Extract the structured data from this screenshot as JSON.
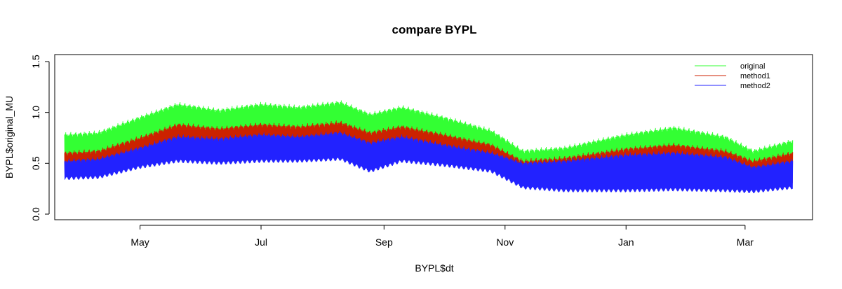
{
  "chart_data": {
    "type": "line",
    "title": "compare BYPL",
    "xlabel": "BYPL$dt",
    "ylabel": "BYPL$original_MU",
    "ylim": [
      0.0,
      1.5
    ],
    "yticks": [
      "0.0",
      "0.5",
      "1.0",
      "1.5"
    ],
    "xlim": [
      "2019-03-19",
      "2020-04-04"
    ],
    "xticks": [
      {
        "label": "May",
        "date": "2019-05-01"
      },
      {
        "label": "Jul",
        "date": "2019-07-01"
      },
      {
        "label": "Sep",
        "date": "2019-09-01"
      },
      {
        "label": "Nov",
        "date": "2019-11-01"
      },
      {
        "label": "Jan",
        "date": "2020-01-01"
      },
      {
        "label": "Mar",
        "date": "2020-03-01"
      }
    ],
    "grid": false,
    "legend_position": "top-right",
    "series": [
      {
        "name": "original",
        "color": "#33ff33",
        "x": [
          "2019-03-24",
          "2019-04-10",
          "2019-05-01",
          "2019-05-20",
          "2019-06-10",
          "2019-07-01",
          "2019-07-20",
          "2019-08-10",
          "2019-08-25",
          "2019-09-10",
          "2019-10-01",
          "2019-10-25",
          "2019-11-10",
          "2019-12-01",
          "2020-01-01",
          "2020-01-25",
          "2020-02-20",
          "2020-03-05",
          "2020-03-25"
        ],
        "y_high": [
          0.78,
          0.8,
          0.95,
          1.08,
          1.02,
          1.08,
          1.05,
          1.1,
          0.98,
          1.05,
          0.95,
          0.82,
          0.62,
          0.65,
          0.78,
          0.85,
          0.76,
          0.62,
          0.72
        ],
        "y_low": [
          0.45,
          0.48,
          0.6,
          0.68,
          0.66,
          0.68,
          0.68,
          0.7,
          0.58,
          0.68,
          0.62,
          0.55,
          0.42,
          0.4,
          0.45,
          0.48,
          0.45,
          0.42,
          0.46
        ]
      },
      {
        "name": "method1",
        "color": "#cc2200",
        "x": [
          "2019-03-24",
          "2019-04-10",
          "2019-05-01",
          "2019-05-20",
          "2019-06-10",
          "2019-07-01",
          "2019-07-20",
          "2019-08-10",
          "2019-08-25",
          "2019-09-10",
          "2019-10-01",
          "2019-10-25",
          "2019-11-10",
          "2019-12-01",
          "2020-01-01",
          "2020-01-25",
          "2020-02-20",
          "2020-03-05",
          "2020-03-25"
        ],
        "y_high": [
          0.6,
          0.62,
          0.75,
          0.88,
          0.84,
          0.88,
          0.86,
          0.9,
          0.8,
          0.86,
          0.78,
          0.68,
          0.52,
          0.55,
          0.64,
          0.68,
          0.62,
          0.52,
          0.6
        ],
        "y_low": [
          0.4,
          0.42,
          0.52,
          0.6,
          0.58,
          0.6,
          0.6,
          0.62,
          0.5,
          0.6,
          0.55,
          0.48,
          0.3,
          0.28,
          0.3,
          0.32,
          0.3,
          0.28,
          0.32
        ]
      },
      {
        "name": "method2",
        "color": "#2222ff",
        "x": [
          "2019-03-24",
          "2019-04-10",
          "2019-05-01",
          "2019-05-20",
          "2019-06-10",
          "2019-07-01",
          "2019-07-20",
          "2019-08-10",
          "2019-08-25",
          "2019-09-10",
          "2019-10-01",
          "2019-10-25",
          "2019-11-10",
          "2019-12-01",
          "2020-01-01",
          "2020-01-25",
          "2020-02-20",
          "2020-03-05",
          "2020-03-25"
        ],
        "y_high": [
          0.52,
          0.54,
          0.65,
          0.76,
          0.74,
          0.78,
          0.76,
          0.8,
          0.7,
          0.76,
          0.68,
          0.6,
          0.5,
          0.52,
          0.58,
          0.6,
          0.56,
          0.46,
          0.52
        ],
        "y_low": [
          0.35,
          0.36,
          0.46,
          0.52,
          0.5,
          0.52,
          0.52,
          0.54,
          0.42,
          0.52,
          0.48,
          0.42,
          0.26,
          0.23,
          0.23,
          0.24,
          0.23,
          0.22,
          0.26
        ]
      }
    ]
  }
}
